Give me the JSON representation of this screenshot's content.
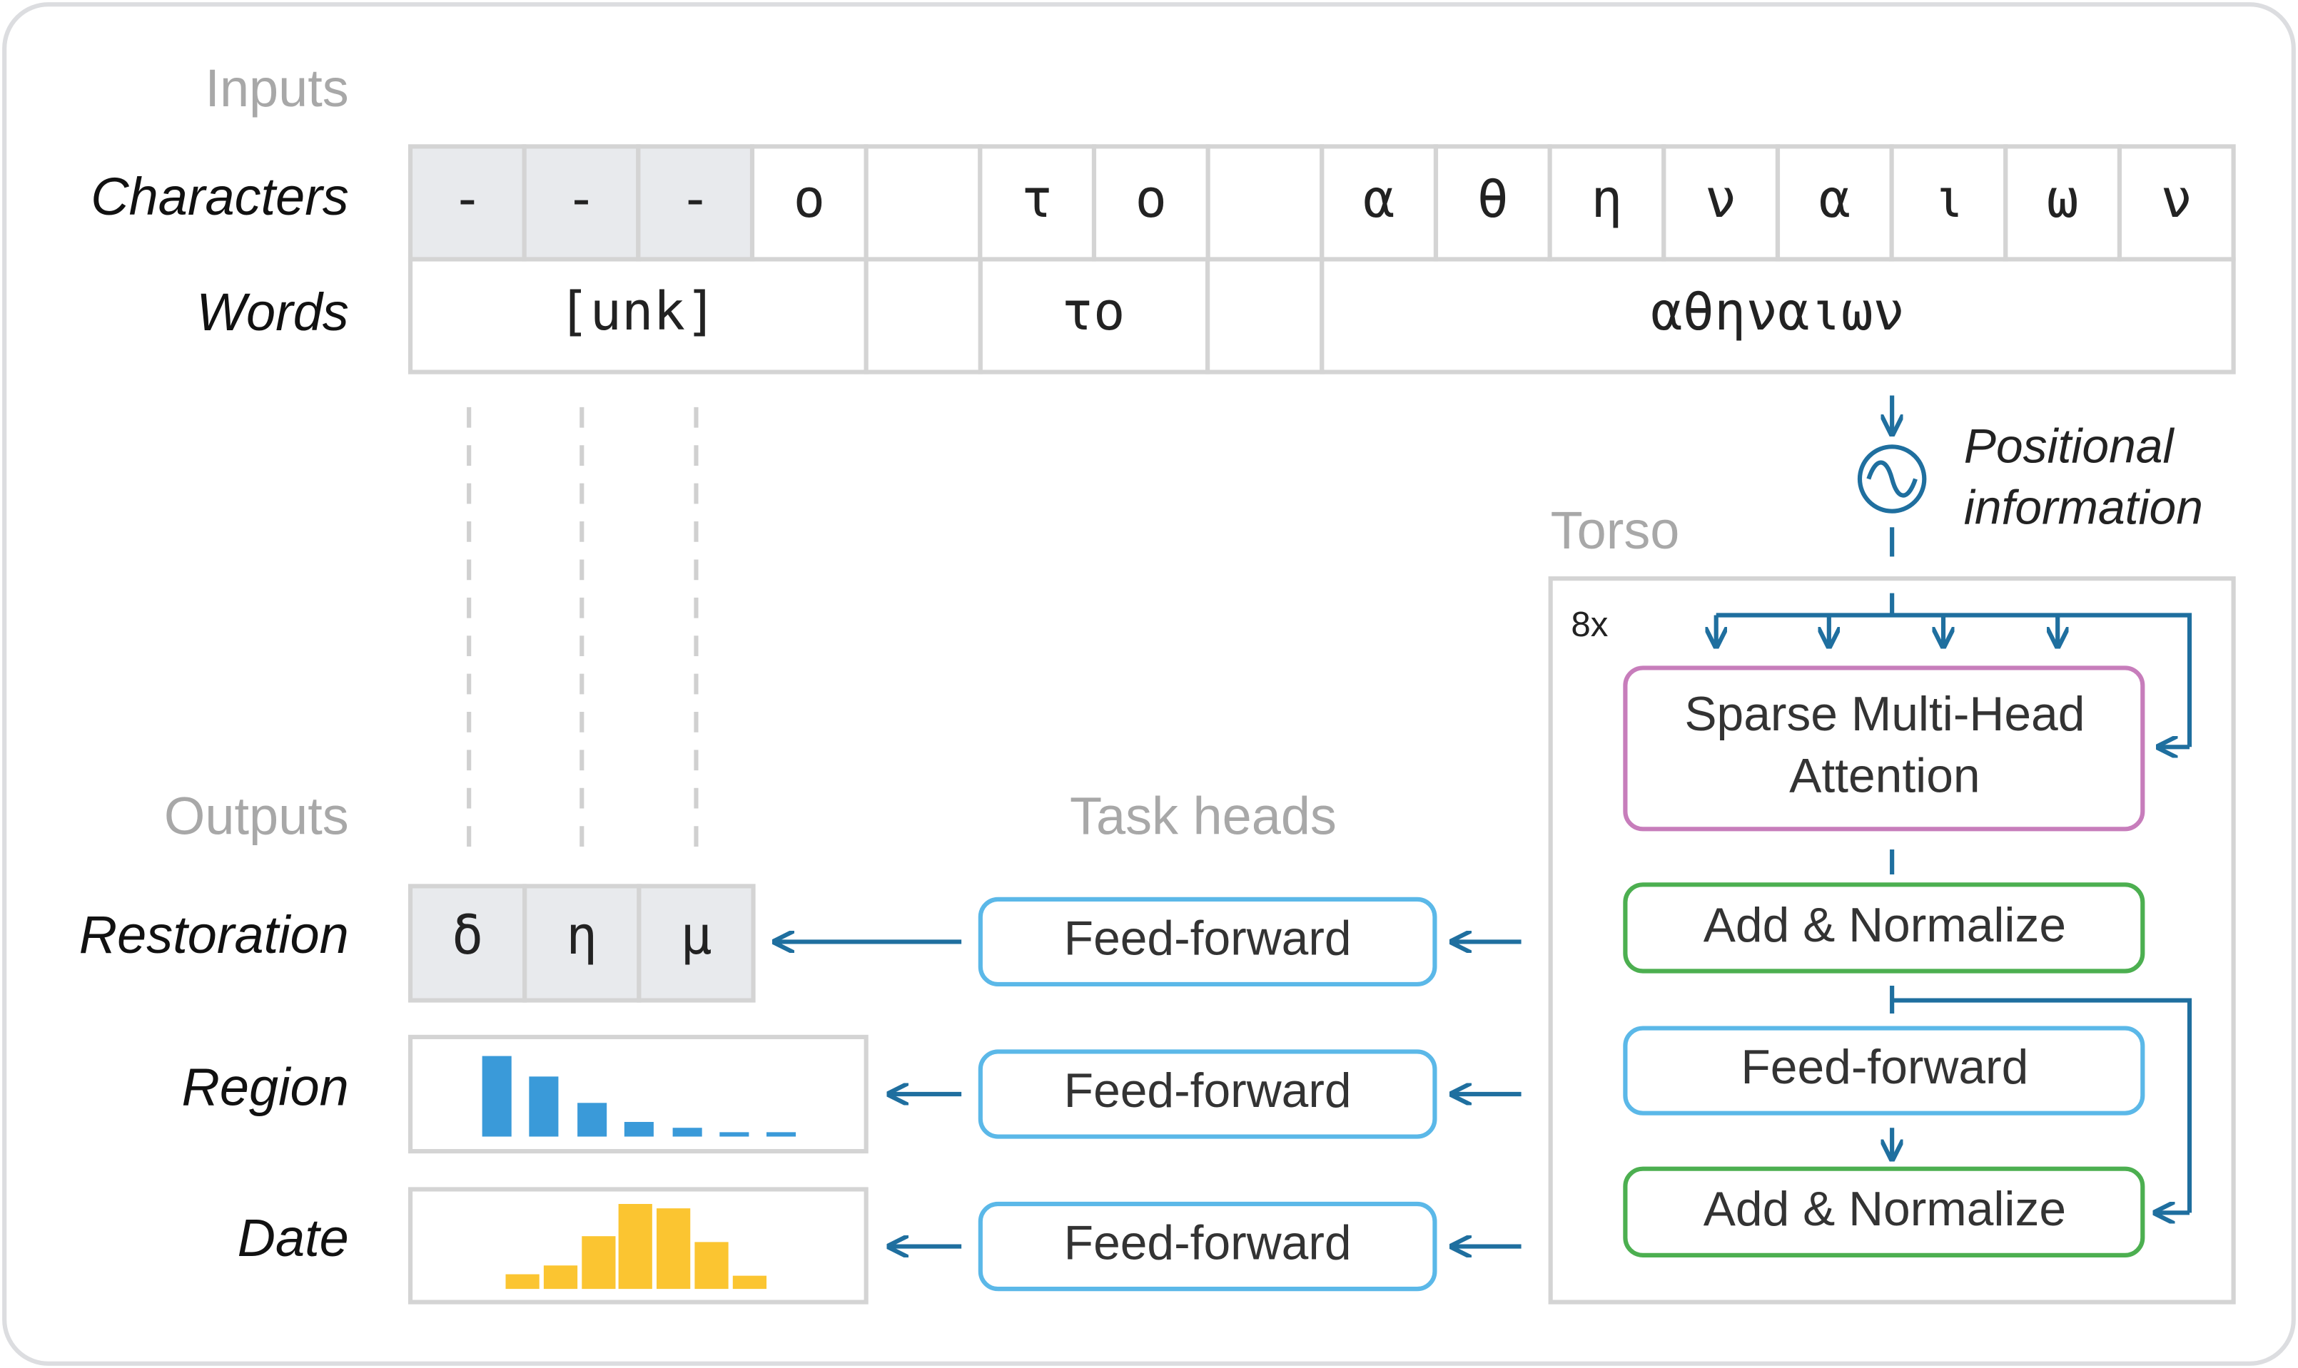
{
  "sections": {
    "inputs": "Inputs",
    "outputs": "Outputs",
    "task_heads": "Task heads",
    "torso": "Torso"
  },
  "inputs": {
    "characters": {
      "label": "Characters",
      "cells": [
        "-",
        "-",
        "-",
        "ο",
        "τ",
        "ο",
        "α",
        "θ",
        "η",
        "ν",
        "α",
        "ι",
        "ω",
        "ν"
      ]
    },
    "words": {
      "label": "Words",
      "cells": [
        "[unk]",
        "το",
        "αθηναιων"
      ]
    }
  },
  "positional": {
    "lines": [
      "Positional",
      "information"
    ]
  },
  "torso": {
    "repeat": "8x",
    "attention": {
      "lines": [
        "Sparse Multi-Head",
        "Attention"
      ]
    },
    "add_norm_1": "Add & Normalize",
    "feed_forward": "Feed-forward",
    "add_norm_2": "Add & Normalize"
  },
  "task_heads": [
    "Feed-forward",
    "Feed-forward",
    "Feed-forward"
  ],
  "outputs": {
    "restoration": {
      "label": "Restoration",
      "cells": [
        "δ",
        "η",
        "μ"
      ]
    },
    "region": {
      "label": "Region"
    },
    "date": {
      "label": "Date"
    }
  }
}
